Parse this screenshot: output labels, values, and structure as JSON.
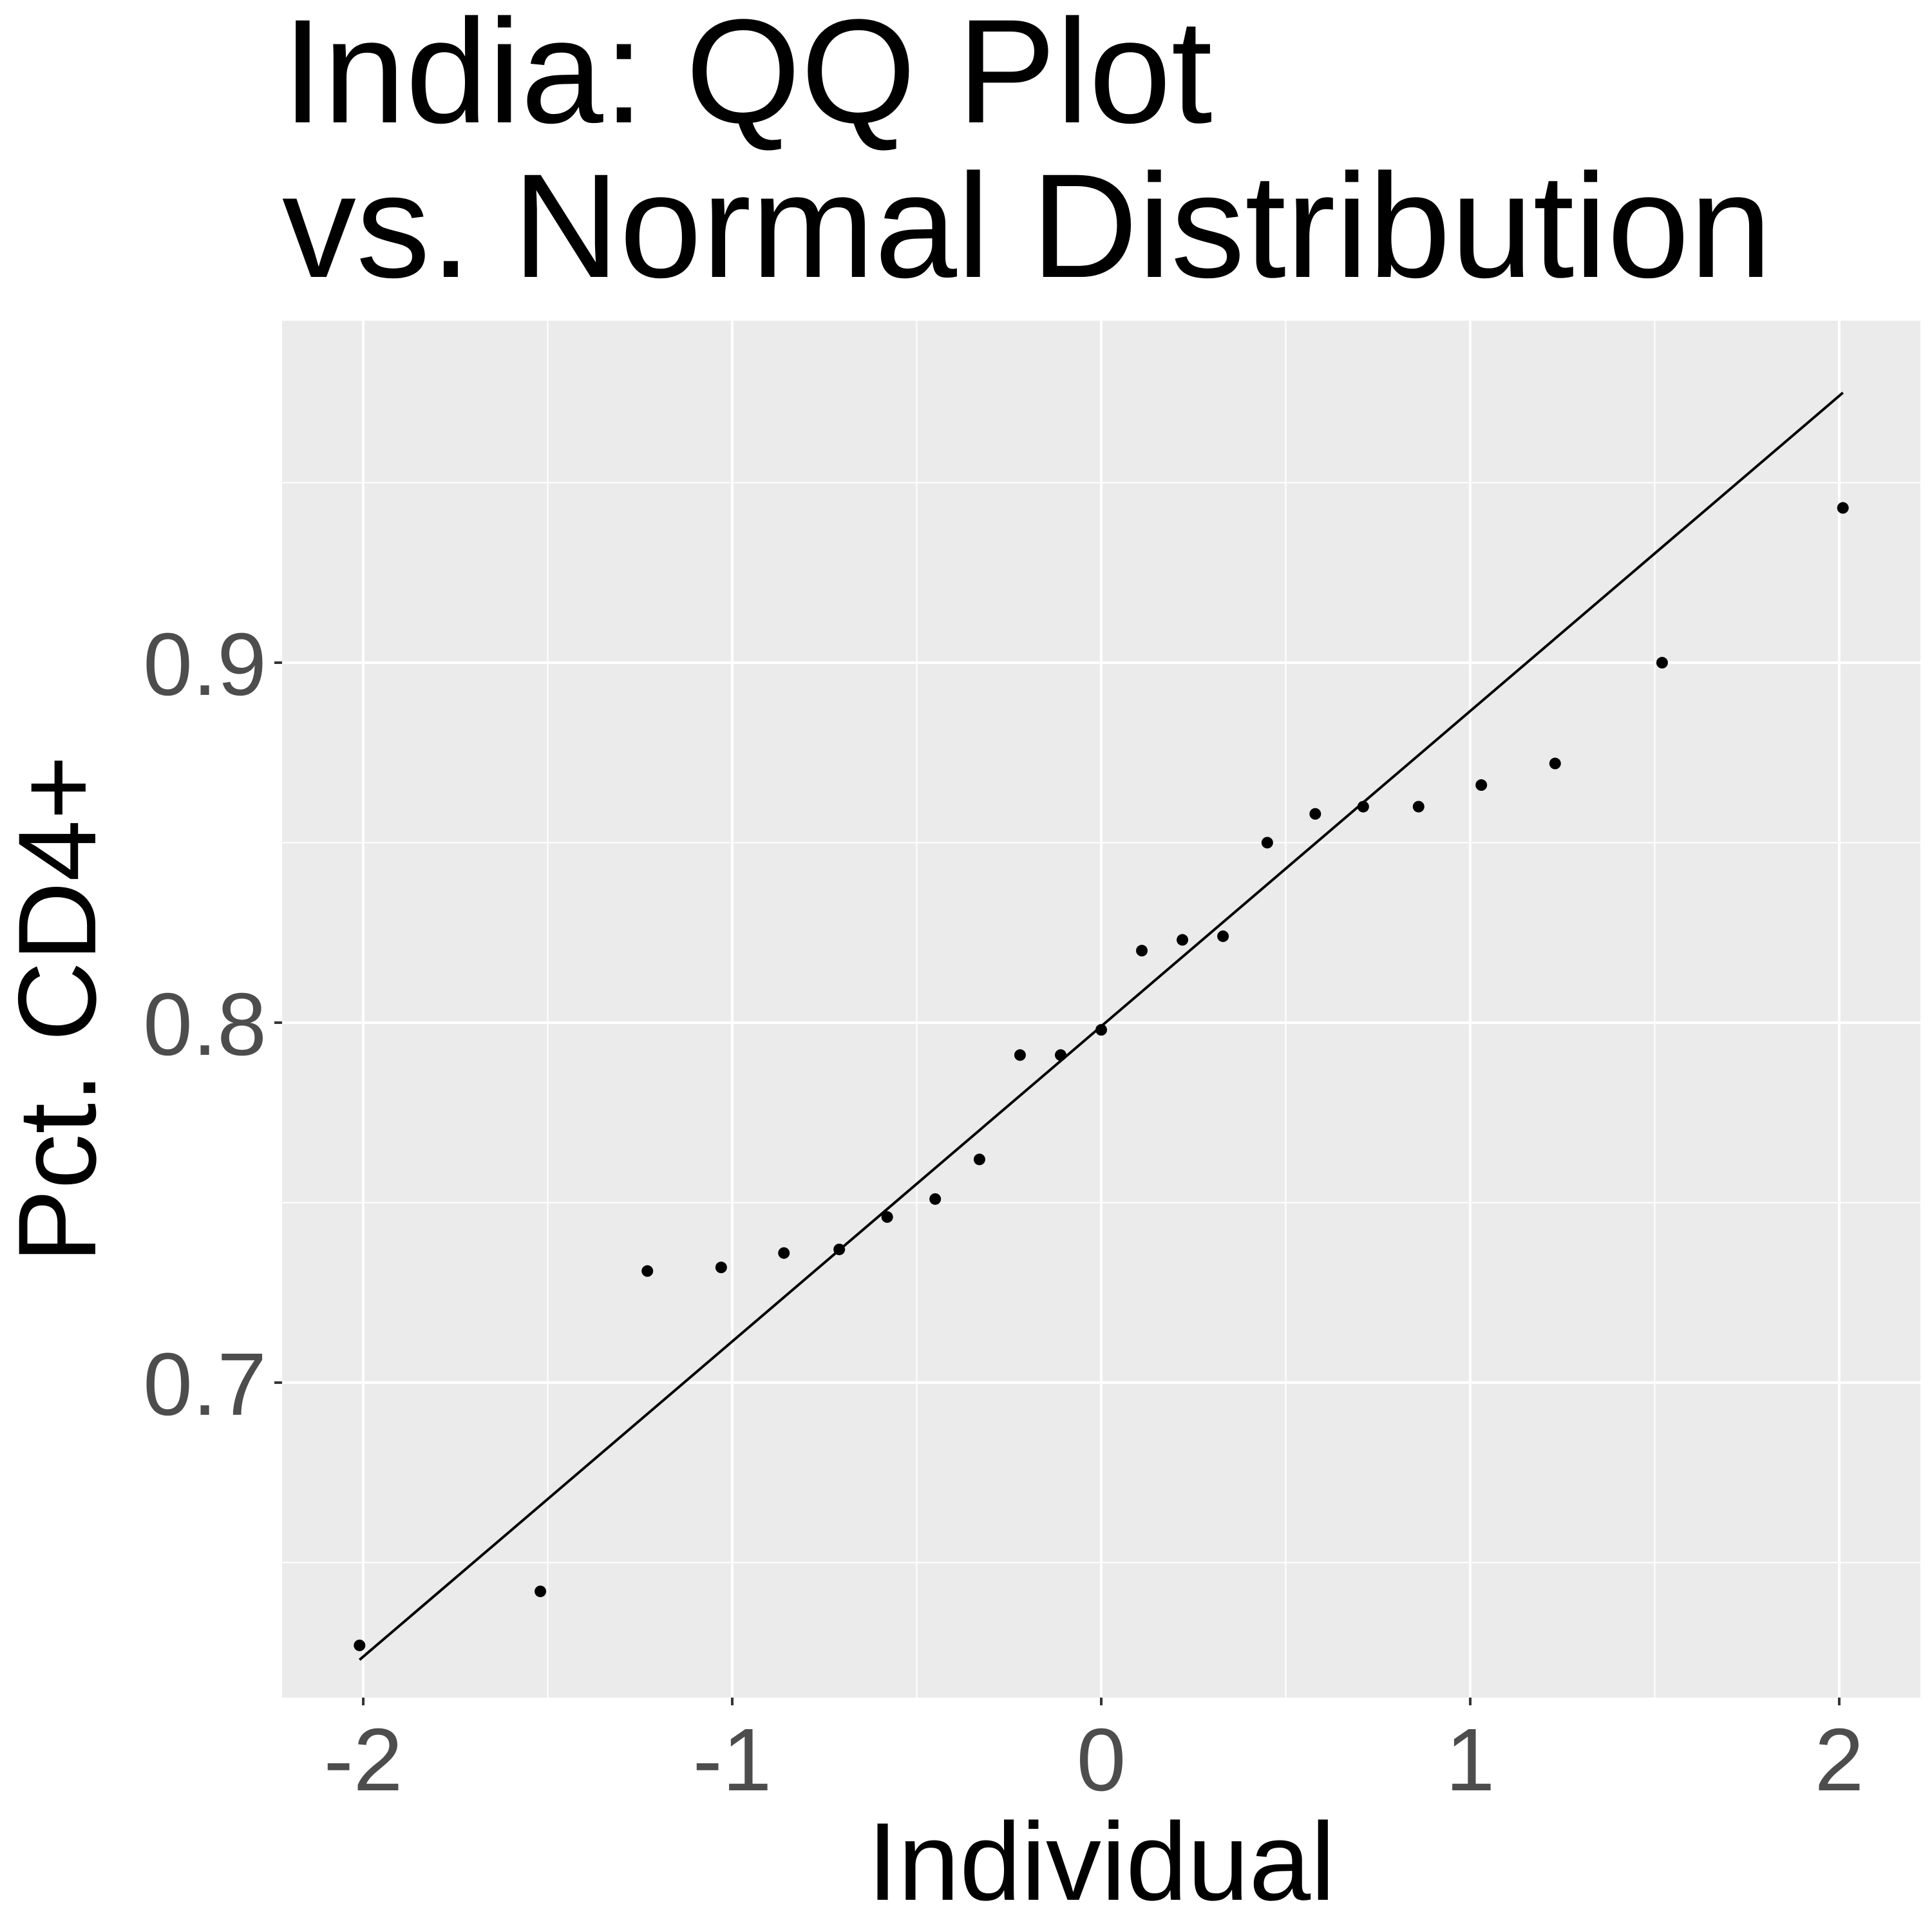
{
  "chart_data": {
    "type": "scatter",
    "title_lines": [
      "India: QQ Plot",
      "vs. Normal Distribution"
    ],
    "xlabel": "Individual",
    "ylabel": "Pct. CD4+",
    "xlim": [
      -2.22,
      2.22
    ],
    "ylim": [
      0.6125,
      0.995
    ],
    "x_ticks": [
      -2,
      -1,
      0,
      1,
      2
    ],
    "x_tick_labels": [
      "-2",
      "-1",
      "0",
      "1",
      "2"
    ],
    "y_ticks": [
      0.7,
      0.8,
      0.9
    ],
    "y_tick_labels": [
      "0.7",
      "0.8",
      "0.9"
    ],
    "x_minor_ticks": [
      -1.5,
      -0.5,
      0.5,
      1.5
    ],
    "y_minor_ticks": [
      0.65,
      0.75,
      0.85,
      0.95
    ],
    "grid": true,
    "background": "#ebebeb",
    "grid_color": "#ffffff",
    "point_color": "#000000",
    "reference_line": {
      "x": [
        -2.01,
        2.01
      ],
      "y": [
        0.623,
        0.975
      ]
    },
    "points": [
      {
        "x": -2.01,
        "y": 0.627
      },
      {
        "x": -1.52,
        "y": 0.642
      },
      {
        "x": -1.23,
        "y": 0.731
      },
      {
        "x": -1.03,
        "y": 0.732
      },
      {
        "x": -0.86,
        "y": 0.736
      },
      {
        "x": -0.71,
        "y": 0.737
      },
      {
        "x": -0.58,
        "y": 0.746
      },
      {
        "x": -0.45,
        "y": 0.751
      },
      {
        "x": -0.33,
        "y": 0.762
      },
      {
        "x": -0.22,
        "y": 0.791
      },
      {
        "x": -0.11,
        "y": 0.791
      },
      {
        "x": 0.0,
        "y": 0.798
      },
      {
        "x": 0.11,
        "y": 0.82
      },
      {
        "x": 0.22,
        "y": 0.823
      },
      {
        "x": 0.33,
        "y": 0.824
      },
      {
        "x": 0.45,
        "y": 0.85
      },
      {
        "x": 0.58,
        "y": 0.858
      },
      {
        "x": 0.71,
        "y": 0.86
      },
      {
        "x": 0.86,
        "y": 0.86
      },
      {
        "x": 1.03,
        "y": 0.866
      },
      {
        "x": 1.23,
        "y": 0.872
      },
      {
        "x": 1.52,
        "y": 0.9
      },
      {
        "x": 2.01,
        "y": 0.943
      }
    ]
  }
}
